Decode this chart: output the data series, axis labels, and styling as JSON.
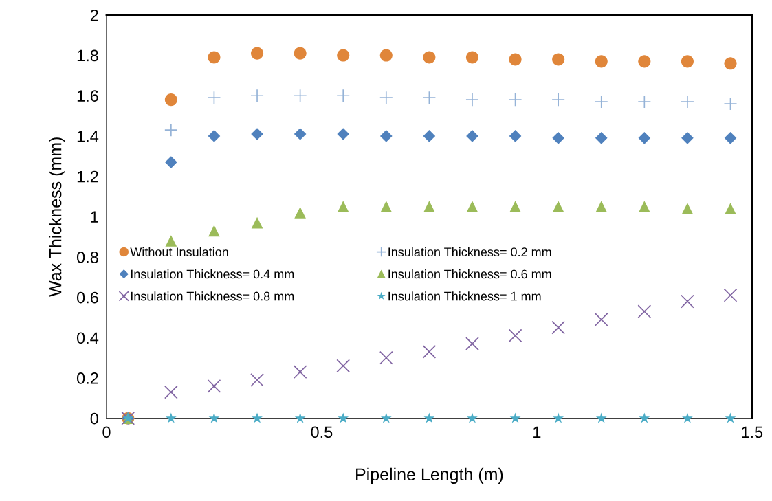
{
  "chart_data": {
    "type": "scatter",
    "xlabel": "Pipeline Length (m)",
    "ylabel": "Wax Thickness (mm)",
    "x": [
      0.05,
      0.15,
      0.25,
      0.35,
      0.45,
      0.55,
      0.65,
      0.75,
      0.85,
      0.95,
      1.05,
      1.15,
      1.25,
      1.35,
      1.45
    ],
    "xlim": [
      0,
      1.5
    ],
    "xticks": [
      0,
      0.5,
      1,
      1.5
    ],
    "ylim": [
      0,
      2
    ],
    "yticks": [
      0,
      0.2,
      0.4,
      0.6,
      0.8,
      1,
      1.2,
      1.4,
      1.6,
      1.8,
      2
    ],
    "grid": false,
    "legend": "center left",
    "series": [
      {
        "name": "Without Insulation",
        "color": "#e0863a",
        "marker": "circle",
        "values": [
          0,
          1.58,
          1.79,
          1.81,
          1.81,
          1.8,
          1.8,
          1.79,
          1.79,
          1.78,
          1.78,
          1.77,
          1.77,
          1.77,
          1.76
        ]
      },
      {
        "name": "Insulation Thickness= 0.2 mm",
        "color": "#95b3d7",
        "marker": "plus",
        "values": [
          0,
          1.43,
          1.59,
          1.6,
          1.6,
          1.6,
          1.59,
          1.59,
          1.58,
          1.58,
          1.58,
          1.57,
          1.57,
          1.57,
          1.56
        ]
      },
      {
        "name": "Insulation Thickness= 0.4 mm",
        "color": "#4f81bd",
        "marker": "diamond",
        "values": [
          0,
          1.27,
          1.4,
          1.41,
          1.41,
          1.41,
          1.4,
          1.4,
          1.4,
          1.4,
          1.39,
          1.39,
          1.39,
          1.39,
          1.39
        ]
      },
      {
        "name": "Insulation Thickness= 0.6 mm",
        "color": "#9bbb59",
        "marker": "triangle",
        "values": [
          0,
          0.88,
          0.93,
          0.97,
          1.02,
          1.05,
          1.05,
          1.05,
          1.05,
          1.05,
          1.05,
          1.05,
          1.05,
          1.04,
          1.04
        ]
      },
      {
        "name": "Insulation Thickness= 0.8 mm",
        "color": "#8064a2",
        "marker": "cross",
        "values": [
          0,
          0.13,
          0.16,
          0.19,
          0.23,
          0.26,
          0.3,
          0.33,
          0.37,
          0.41,
          0.45,
          0.49,
          0.53,
          0.58,
          0.61
        ]
      },
      {
        "name": "Insulation Thickness= 1 mm",
        "color": "#4bacc6",
        "marker": "star",
        "values": [
          0,
          0,
          0,
          0,
          0,
          0,
          0,
          0,
          0,
          0,
          0,
          0,
          0,
          0,
          0
        ]
      }
    ]
  }
}
